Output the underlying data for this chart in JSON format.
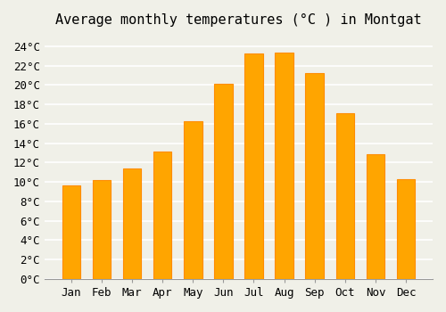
{
  "title": "Average monthly temperatures (°C ) in Montgat",
  "months": [
    "Jan",
    "Feb",
    "Mar",
    "Apr",
    "May",
    "Jun",
    "Jul",
    "Aug",
    "Sep",
    "Oct",
    "Nov",
    "Dec"
  ],
  "values": [
    9.6,
    10.2,
    11.4,
    13.1,
    16.3,
    20.1,
    23.2,
    23.3,
    21.2,
    17.1,
    12.9,
    10.3
  ],
  "bar_color": "#FFA500",
  "bar_edge_color": "#FF8C00",
  "background_color": "#F0F0E8",
  "grid_color": "#FFFFFF",
  "ylim": [
    0,
    25
  ],
  "yticks": [
    0,
    2,
    4,
    6,
    8,
    10,
    12,
    14,
    16,
    18,
    20,
    22,
    24
  ],
  "title_fontsize": 11,
  "tick_fontsize": 9,
  "figsize": [
    5.0,
    3.5
  ],
  "dpi": 100
}
